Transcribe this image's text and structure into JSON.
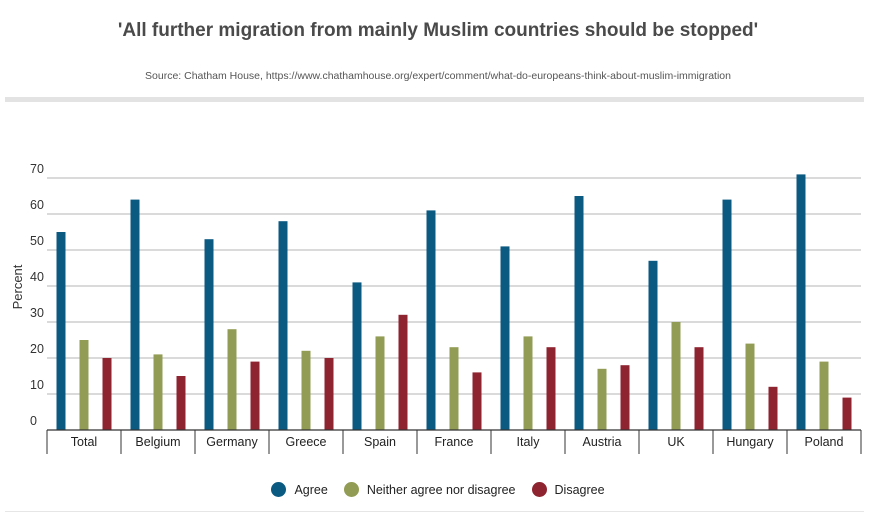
{
  "chart_data": {
    "type": "bar",
    "title": "'All further migration from mainly Muslim countries should be stopped'",
    "source": "Source: Chatham House, https://www.chathamhouse.org/expert/comment/what-do-europeans-think-about-muslim-immigration",
    "xlabel": "",
    "ylabel": "Percent",
    "ylim": [
      0,
      70
    ],
    "yticks": [
      0,
      10,
      20,
      30,
      40,
      50,
      60,
      70
    ],
    "grid": true,
    "legend_position": "bottom",
    "categories": [
      "Total",
      "Belgium",
      "Germany",
      "Greece",
      "Spain",
      "France",
      "Italy",
      "Austria",
      "UK",
      "Hungary",
      "Poland"
    ],
    "series": [
      {
        "name": "Agree",
        "color": "#0b5a82",
        "values": [
          55,
          64,
          53,
          58,
          41,
          61,
          51,
          65,
          47,
          64,
          71
        ]
      },
      {
        "name": "Neither agree nor disagree",
        "color": "#939c54",
        "values": [
          25,
          21,
          28,
          22,
          26,
          23,
          26,
          17,
          30,
          24,
          19
        ]
      },
      {
        "name": "Disagree",
        "color": "#8e2430",
        "values": [
          20,
          15,
          19,
          20,
          32,
          16,
          23,
          18,
          23,
          12,
          9
        ]
      }
    ]
  }
}
